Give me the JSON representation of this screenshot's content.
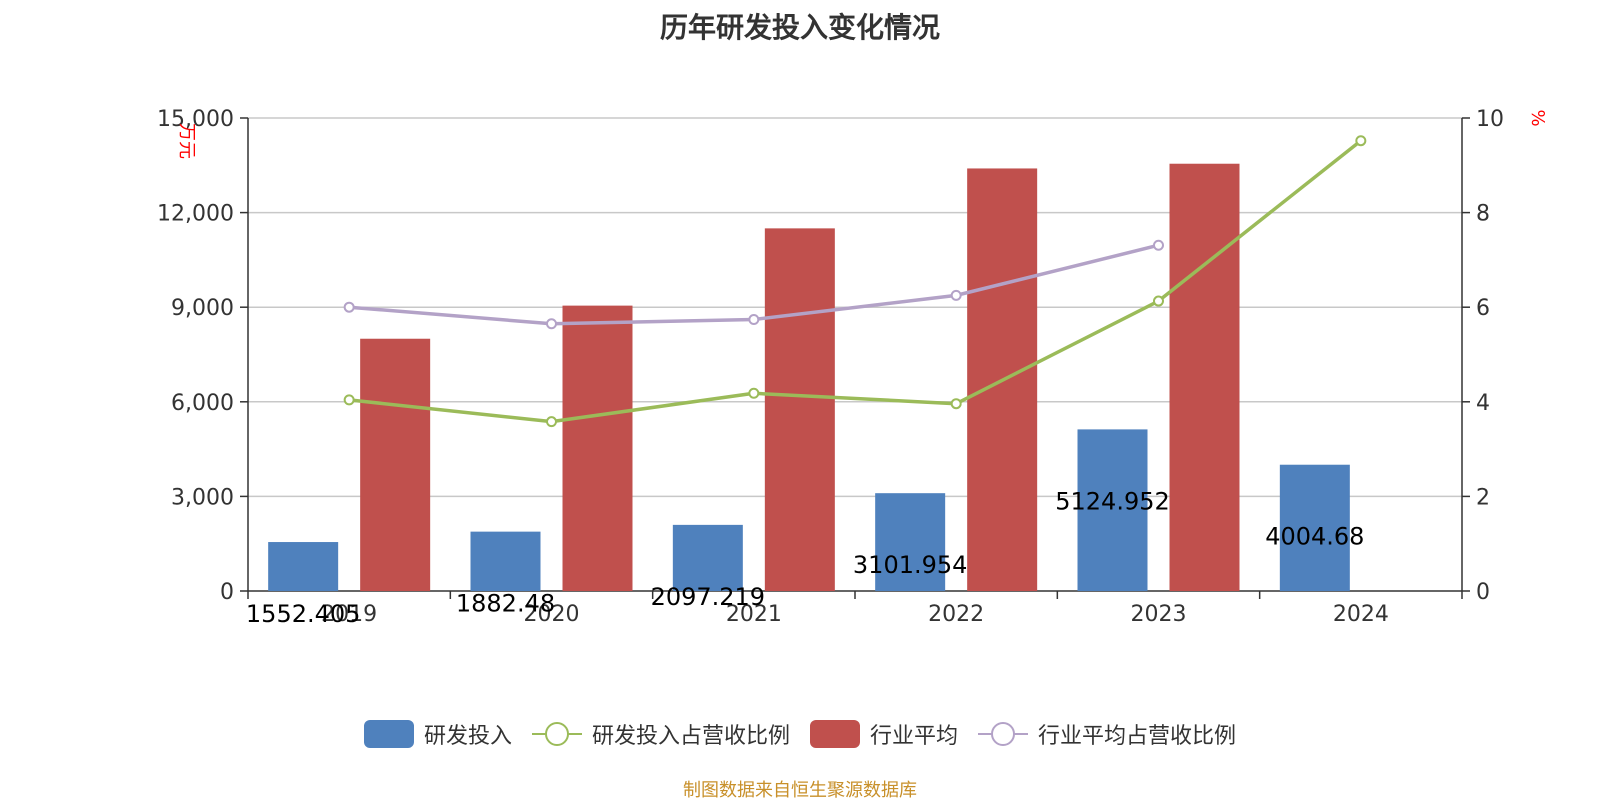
{
  "chart_data": {
    "type": "bar",
    "title": "历年研发投入变化情况",
    "categories": [
      "2019",
      "2020",
      "2021",
      "2022",
      "2023",
      "2024"
    ],
    "ylabel_left": "万元",
    "ylabel_right": "%",
    "ylim_left": [
      0,
      15000
    ],
    "yticks_left": [
      "0",
      "3,000",
      "6,000",
      "9,000",
      "12,000",
      "15,000"
    ],
    "ylim_right": [
      0,
      10
    ],
    "yticks_right": [
      "0",
      "2",
      "4",
      "6",
      "8",
      "10"
    ],
    "grid": true,
    "legend_position": "bottom",
    "series": [
      {
        "name": "研发投入",
        "type": "bar",
        "axis": "left",
        "color": "#4f81bd",
        "values": [
          1552.405,
          1882.48,
          2097.219,
          3101.954,
          5124.952,
          4004.68
        ],
        "labels": [
          "1552.405",
          "1882.48",
          "2097.219",
          "3101.954",
          "5124.952",
          "4004.68"
        ]
      },
      {
        "name": "研发投入占营收比例",
        "type": "line",
        "axis": "right",
        "color": "#9bbb59",
        "values": [
          4.04,
          3.58,
          4.18,
          3.96,
          6.13,
          9.52
        ]
      },
      {
        "name": "行业平均",
        "type": "bar",
        "axis": "left",
        "color": "#c0504d",
        "values": [
          8000,
          9050,
          11500,
          13400,
          13550,
          null
        ]
      },
      {
        "name": "行业平均占营收比例",
        "type": "line",
        "axis": "right",
        "color": "#b3a2c7",
        "values": [
          6.0,
          5.65,
          5.74,
          6.25,
          7.31,
          null
        ]
      }
    ]
  },
  "legend": {
    "items": [
      {
        "label": "研发投入",
        "kind": "bar",
        "color": "#4f81bd"
      },
      {
        "label": "研发投入占营收比例",
        "kind": "line",
        "color": "#9bbb59"
      },
      {
        "label": "行业平均",
        "kind": "bar",
        "color": "#c0504d"
      },
      {
        "label": "行业平均占营收比例",
        "kind": "line",
        "color": "#b3a2c7"
      }
    ]
  },
  "source": "制图数据来自恒生聚源数据库"
}
